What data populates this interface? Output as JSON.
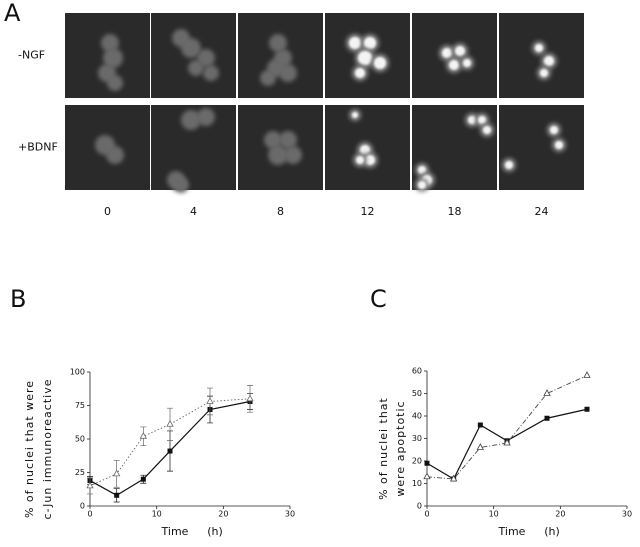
{
  "panel_a": {
    "label": "A",
    "rows": [
      "-NGF",
      "+BDNF"
    ],
    "times": [
      "0",
      "4",
      "8",
      "12",
      "18",
      "24"
    ]
  },
  "chart_data": [
    {
      "type": "line",
      "panel": "B",
      "ylabel": [
        "% of nuclei that were",
        "c-Jun immunoreactive"
      ],
      "xlabel": [
        "Time",
        "(h)"
      ],
      "x": [
        0,
        4,
        8,
        12,
        18,
        24
      ],
      "xlim": [
        0,
        30
      ],
      "xticks": [
        0,
        10,
        20,
        30
      ],
      "ylim": [
        0,
        100
      ],
      "yticks": [
        0,
        25,
        50,
        75,
        100
      ],
      "series": [
        {
          "marker": "square",
          "color": "#111111",
          "dash": "solid",
          "values": [
            19,
            8,
            20,
            41,
            72,
            78
          ],
          "errors": [
            3,
            5,
            3,
            15,
            10,
            6
          ]
        },
        {
          "marker": "triangle",
          "color": "#666666",
          "dash": "dotted",
          "values": [
            15,
            24,
            52,
            61,
            78,
            80
          ],
          "errors": [
            6,
            10,
            7,
            12,
            10,
            10
          ]
        }
      ]
    },
    {
      "type": "line",
      "panel": "C",
      "ylabel": [
        "% of nuclei that",
        "were apoptotic"
      ],
      "xlabel": [
        "Time",
        "(h)"
      ],
      "x": [
        0,
        4,
        8,
        12,
        18,
        24
      ],
      "xlim": [
        0,
        30
      ],
      "xticks": [
        0,
        10,
        20,
        30
      ],
      "ylim": [
        0,
        60
      ],
      "yticks": [
        0,
        10,
        20,
        30,
        40,
        50,
        60
      ],
      "series": [
        {
          "marker": "square",
          "color": "#111111",
          "dash": "solid",
          "values": [
            19,
            12,
            36,
            29,
            39,
            43
          ]
        },
        {
          "marker": "triangle",
          "color": "#444444",
          "dash": "dashdot",
          "values": [
            13,
            12,
            26,
            28,
            50,
            58
          ]
        }
      ]
    }
  ]
}
